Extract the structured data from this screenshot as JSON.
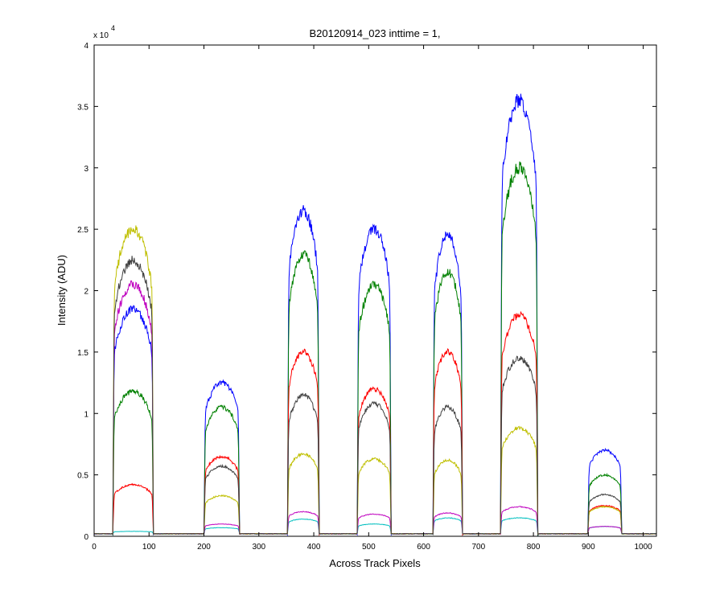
{
  "chart_data": {
    "type": "line",
    "title": "B20120914_023 inttime = 1,",
    "xlabel": "Across Track Pixels",
    "ylabel": "Intensity (ADU)",
    "y_exponent_label": "x 10",
    "y_exponent_power": "4",
    "xlim": [
      0,
      1024
    ],
    "ylim": [
      0,
      40000
    ],
    "xticks": [
      0,
      100,
      200,
      300,
      400,
      500,
      600,
      700,
      800,
      900,
      1000
    ],
    "xtick_labels": [
      "0",
      "100",
      "200",
      "300",
      "400",
      "500",
      "600",
      "700",
      "800",
      "900",
      "1000"
    ],
    "yticks": [
      0,
      5000,
      10000,
      15000,
      20000,
      25000,
      30000,
      35000,
      40000
    ],
    "ytick_labels": [
      "0",
      "0.5",
      "1",
      "1.5",
      "2",
      "2.5",
      "3",
      "3.5",
      "4"
    ],
    "grid": false,
    "baseline": 200,
    "blocks": [
      {
        "x_start": 37,
        "x_end": 105
      },
      {
        "x_start": 203,
        "x_end": 262
      },
      {
        "x_start": 355,
        "x_end": 407
      },
      {
        "x_start": 482,
        "x_end": 538
      },
      {
        "x_start": 620,
        "x_end": 668
      },
      {
        "x_start": 743,
        "x_end": 805
      },
      {
        "x_start": 902,
        "x_end": 958
      }
    ],
    "series": [
      {
        "color": "#0000ff",
        "block_peaks": [
          18500,
          12500,
          26500,
          25000,
          24500,
          35500,
          7000
        ]
      },
      {
        "color": "#008000",
        "block_peaks": [
          11800,
          10500,
          23000,
          20500,
          21500,
          30000,
          5000
        ]
      },
      {
        "color": "#ff0000",
        "block_peaks": [
          4200,
          6500,
          15000,
          12000,
          15000,
          18000,
          2500
        ]
      },
      {
        "color": "#00bfbf",
        "block_peaks": [
          400,
          700,
          1400,
          1000,
          1500,
          1500,
          800
        ]
      },
      {
        "color": "#bf00bf",
        "block_peaks": [
          20500,
          1000,
          2000,
          1800,
          1900,
          2400,
          800
        ]
      },
      {
        "color": "#bfbf00",
        "block_peaks": [
          25000,
          3300,
          6700,
          6300,
          6200,
          8800,
          2400
        ]
      },
      {
        "color": "#404040",
        "block_peaks": [
          22500,
          5700,
          11500,
          10800,
          10500,
          14500,
          3400
        ]
      }
    ]
  }
}
